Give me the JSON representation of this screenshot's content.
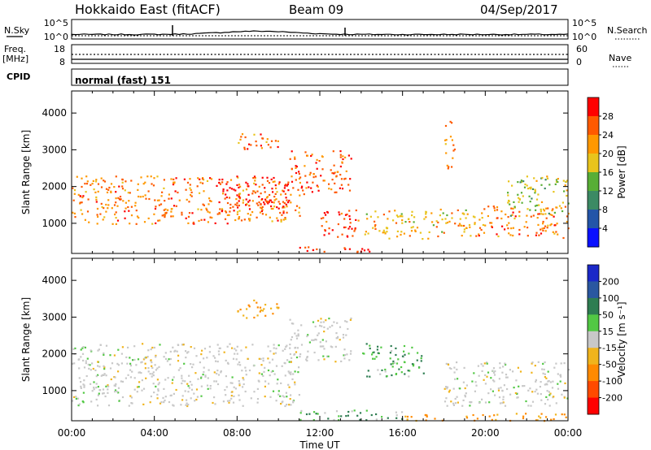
{
  "header": {
    "title": "Hokkaido East (fitACF)",
    "beam": "Beam 09",
    "date": "04/Sep/2017"
  },
  "top_panels": {
    "nsky_label": "N.Sky",
    "nsearch_label": "N.Search",
    "noise_left_ticks": [
      "10^5",
      "10^0"
    ],
    "noise_right_ticks": [
      "10^5",
      "10^0"
    ],
    "freq_label_1": "Freq.",
    "freq_label_2": "[MHz]",
    "freq_ticks": [
      "18",
      "8"
    ],
    "nave_label": "Nave",
    "nave_ticks": [
      "60",
      "0"
    ],
    "cpid_label": "CPID",
    "cpid_text": "normal (fast) 151"
  },
  "power_panel": {
    "ylabel": "Slant Range [km]",
    "yticks": [
      "4000",
      "3000",
      "2000",
      "1000"
    ],
    "colorbar_label": "Power [dB]",
    "colorbar_ticks": [
      "28",
      "24",
      "20",
      "16",
      "12",
      "8",
      "4"
    ],
    "colorbar_colors": [
      "#ff0000",
      "#ff5a00",
      "#ff9800",
      "#e8c41c",
      "#58ae36",
      "#3c8a64",
      "#2355a8",
      "#0a10ff"
    ]
  },
  "velocity_panel": {
    "ylabel": "Slant Range [km]",
    "yticks": [
      "4000",
      "3000",
      "2000",
      "1000"
    ],
    "colorbar_label": "Velocity [m s⁻¹]",
    "colorbar_ticks": [
      "200",
      "100",
      "50",
      "15",
      "-15",
      "-50",
      "-100",
      "-200"
    ],
    "colorbar_colors": [
      "#1b28c8",
      "#2a57a0",
      "#2e7d52",
      "#52c844",
      "#c8c8c8",
      "#f0b41c",
      "#ff8a00",
      "#ff4a00",
      "#ff0000"
    ]
  },
  "xaxis": {
    "label": "Time UT",
    "ticks": [
      "00:00",
      "04:00",
      "08:00",
      "12:00",
      "16:00",
      "20:00",
      "00:00"
    ]
  },
  "chart_data": [
    {
      "type": "heatmap",
      "title": "Hokkaido East (fitACF)",
      "panel": "power",
      "xlabel": "Time UT",
      "ylabel": "Slant Range [km]",
      "xlim": [
        0,
        24
      ],
      "ylim": [
        180,
        4600
      ],
      "colorbar": "Power [dB]",
      "clim": [
        0,
        30
      ],
      "features": [
        {
          "t": [
            0.0,
            11.0
          ],
          "range_km": [
            1000,
            2300
          ],
          "power_db": 24
        },
        {
          "t": [
            7.0,
            10.5
          ],
          "range_km": [
            1300,
            2300
          ],
          "power_db": 30
        },
        {
          "t": [
            8.0,
            10.0
          ],
          "range_km": [
            3000,
            3500
          ],
          "power_db": 24
        },
        {
          "t": [
            10.5,
            13.5
          ],
          "range_km": [
            1800,
            3000
          ],
          "power_db": 26
        },
        {
          "t": [
            11.0,
            15.0
          ],
          "range_km": [
            220,
            400
          ],
          "power_db": 30
        },
        {
          "t": [
            12.0,
            14.0
          ],
          "range_km": [
            600,
            1400
          ],
          "power_db": 28
        },
        {
          "t": [
            14.0,
            19.5
          ],
          "range_km": [
            600,
            1400
          ],
          "power_db": 20
        },
        {
          "t": [
            18.0,
            18.5
          ],
          "range_km": [
            2500,
            3800
          ],
          "power_db": 24
        },
        {
          "t": [
            19.5,
            24.0
          ],
          "range_km": [
            600,
            1500
          ],
          "power_db": 24
        },
        {
          "t": [
            21.0,
            24.0
          ],
          "range_km": [
            1200,
            2300
          ],
          "power_db": 16
        }
      ]
    },
    {
      "type": "heatmap",
      "panel": "velocity",
      "xlabel": "Time UT",
      "ylabel": "Slant Range [km]",
      "xlim": [
        0,
        24
      ],
      "ylim": [
        180,
        4600
      ],
      "colorbar": "Velocity [m s⁻¹]",
      "clim": [
        -200,
        200
      ],
      "features": [
        {
          "t": [
            0.0,
            11.0
          ],
          "range_km": [
            600,
            2300
          ],
          "velocity_ms": 0
        },
        {
          "t": [
            8.0,
            10.0
          ],
          "range_km": [
            3000,
            3500
          ],
          "velocity_ms": -40
        },
        {
          "t": [
            10.5,
            13.5
          ],
          "range_km": [
            1800,
            3000
          ],
          "velocity_ms": 0
        },
        {
          "t": [
            11.0,
            16.0
          ],
          "range_km": [
            220,
            500
          ],
          "velocity_ms": 30
        },
        {
          "t": [
            14.0,
            17.0
          ],
          "range_km": [
            1400,
            2300
          ],
          "velocity_ms": 30
        },
        {
          "t": [
            16.0,
            24.0
          ],
          "range_km": [
            200,
            400
          ],
          "velocity_ms": -60
        },
        {
          "t": [
            18.0,
            24.0
          ],
          "range_km": [
            600,
            1800
          ],
          "velocity_ms": 0
        }
      ]
    }
  ]
}
